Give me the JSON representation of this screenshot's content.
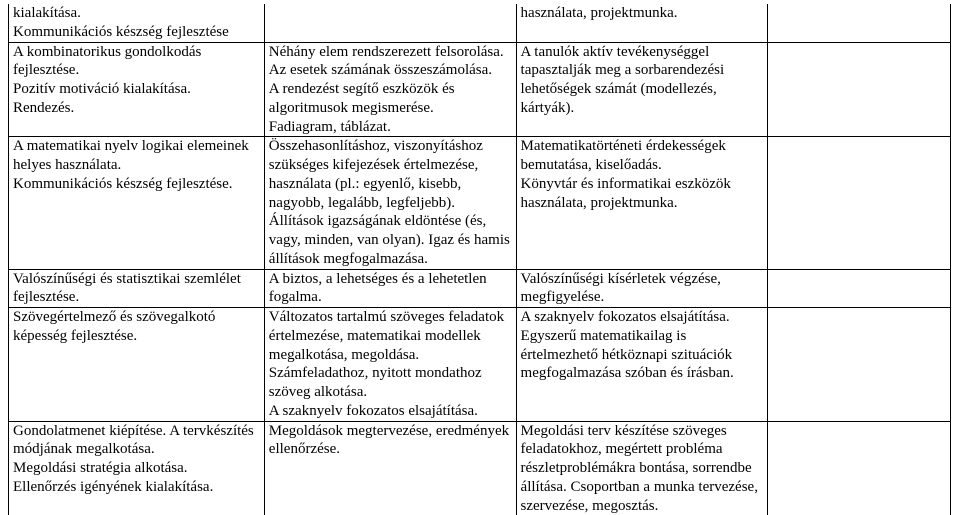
{
  "rows": [
    {
      "c1": "kialakítása.\nKommunikációs készség fejlesztése",
      "c2": "",
      "c3": "használata, projektmunka.",
      "c4": "",
      "sep": true
    },
    {
      "c1": "A kombinatorikus gondolkodás fejlesztése.\nPozitív motiváció kialakítása.\nRendezés.",
      "c2": "Néhány elem rendszerezett felsorolása.\nAz esetek számának összeszámolása.\nA rendezést segítő eszközök és algoritmusok megismerése.\nFadiagram, táblázat.",
      "c3": "A tanulók aktív tevékenységgel tapasztalják meg a sorbarendezési lehetőségek számát (modellezés, kártyák).",
      "c4": "",
      "sep": true
    },
    {
      "c1": "A matematikai nyelv logikai elemeinek helyes használata.\nKommunikációs készség fejlesztése.",
      "c2": "Összehasonlításhoz, viszonyításhoz szükséges kifejezések értelmezése, használata (pl.: egyenlő, kisebb, nagyobb, legalább, legfeljebb).\nÁllítások igazságának eldöntése (és, vagy, minden, van olyan). Igaz és hamis állítások megfogalmazása.",
      "c3": "Matematikatörténeti érdekességek bemutatása, kiselőadás.\nKönyvtár és informatikai eszközök használata, projektmunka.",
      "c4": "",
      "sep": true
    },
    {
      "c1": "Valószínűségi és statisztikai szemlélet fejlesztése.",
      "c2": "A biztos, a lehetséges és a lehetetlen fogalma.",
      "c3": "Valószínűségi kísérletek végzése, megfigyelése.",
      "c4": "",
      "sep": true
    },
    {
      "c1": "Szövegértelmező és szövegalkotó képesség fejlesztése.",
      "c2": "Változatos tartalmú szöveges feladatok értelmezése, matematikai modellek megalkotása, megoldása.\nSzámfeladathoz, nyitott mondathoz szöveg alkotása.\nA szaknyelv fokozatos elsajátítása.",
      "c3": "A szaknyelv fokozatos elsajátítása.\n Egyszerű matematikailag is értelmezhető hétköznapi szituációk megfogalmazása szóban és írásban.",
      "c4": "",
      "sep": true
    },
    {
      "c1": "Gondolatmenet kiépítése. A tervkészítés módjának megalkotása.\nMegoldási stratégia alkotása.\nEllenőrzés igényének kialakítása.",
      "c2": "Megoldások megtervezése, eredmények ellenőrzése.",
      "c3": "Megoldási terv készítése szöveges feladatokhoz, megértett probléma részletproblémákra bontása, sorrendbe állítása. Csoportban a munka tervezése, szervezése, megosztás.",
      "c4": "",
      "sep": false
    }
  ]
}
